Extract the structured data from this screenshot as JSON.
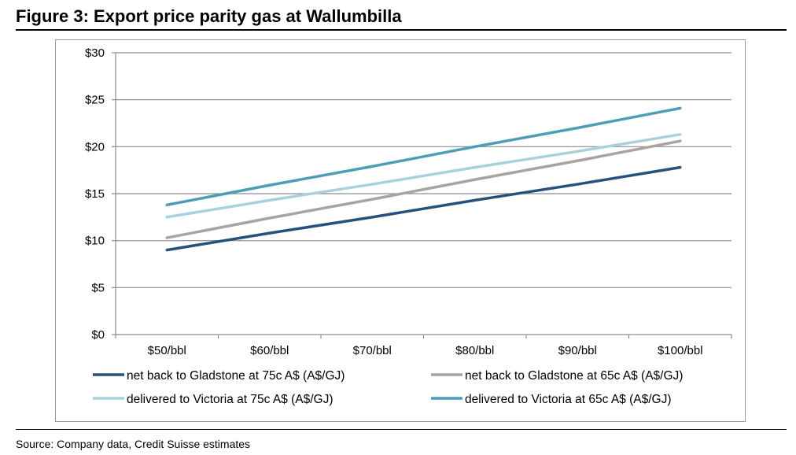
{
  "title": "Figure 3: Export price parity gas at Wallumbilla",
  "source": "Source: Company data, Credit Suisse estimates",
  "chart_data": {
    "type": "line",
    "title": "",
    "xlabel": "",
    "ylabel": "",
    "categories": [
      "$50/bbl",
      "$60/bbl",
      "$70/bbl",
      "$80/bbl",
      "$90/bbl",
      "$100/bbl"
    ],
    "ylim": [
      0,
      30
    ],
    "yticks": [
      0,
      5,
      10,
      15,
      20,
      25,
      30
    ],
    "ytick_labels": [
      "$0",
      "$5",
      "$10",
      "$15",
      "$20",
      "$25",
      "$30"
    ],
    "grid": true,
    "legend_position": "bottom",
    "series": [
      {
        "name": "net back to Gladstone at 75c A$ (A$/GJ)",
        "color": "#24527f",
        "values": [
          9.0,
          10.8,
          12.5,
          14.3,
          16.0,
          17.8
        ]
      },
      {
        "name": "net back to Gladstone at 65c A$ (A$/GJ)",
        "color": "#aaa29d",
        "values": [
          10.3,
          12.4,
          14.4,
          16.5,
          18.5,
          20.6
        ]
      },
      {
        "name": "delivered to Victoria at 75c A$ (A$/GJ)",
        "color": "#a9d1db",
        "values": [
          12.5,
          14.3,
          16.0,
          17.8,
          19.5,
          21.3
        ]
      },
      {
        "name": "delivered to Victoria at 65c A$ (A$/GJ)",
        "color": "#4e9db8",
        "values": [
          13.8,
          15.9,
          17.9,
          20.0,
          22.0,
          24.1
        ]
      }
    ]
  }
}
